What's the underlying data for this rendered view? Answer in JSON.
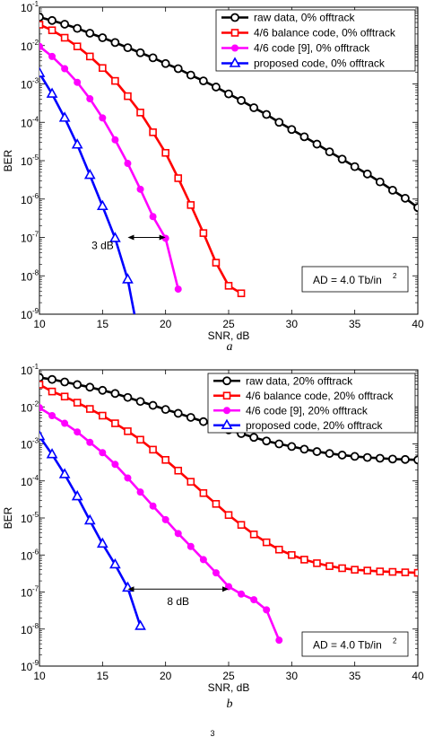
{
  "figure_labels": {
    "a": "a",
    "b": "b",
    "footer_mark": "3"
  },
  "chart_data": [
    {
      "type": "line",
      "panel": "a",
      "xlabel": "SNR, dB",
      "ylabel": "BER",
      "x_scale": "linear",
      "y_scale": "log",
      "xlim": [
        10,
        40
      ],
      "ylim": [
        1e-09,
        0.1
      ],
      "x_ticks": [
        "10",
        "15",
        "20",
        "25",
        "30",
        "35",
        "40"
      ],
      "y_ticks": [
        {
          "base": "10",
          "exp": "-9"
        },
        {
          "base": "10",
          "exp": "-8"
        },
        {
          "base": "10",
          "exp": "-7"
        },
        {
          "base": "10",
          "exp": "-6"
        },
        {
          "base": "10",
          "exp": "-5"
        },
        {
          "base": "10",
          "exp": "-4"
        },
        {
          "base": "10",
          "exp": "-3"
        },
        {
          "base": "10",
          "exp": "-2"
        },
        {
          "base": "10",
          "exp": "-1"
        }
      ],
      "grid": false,
      "legend_position": "top-right",
      "annotation": {
        "text_main": "AD = 4.0 Tb/in",
        "text_sup": "2",
        "position": "bottom-right"
      },
      "arrow": {
        "label": "3 dB",
        "x_from": 17,
        "x_to": 20,
        "y": 1e-07
      },
      "series": [
        {
          "name": "raw data, 0% offtrack",
          "color": "#000000",
          "marker": "circle",
          "x": [
            10,
            11,
            12,
            13,
            14,
            15,
            16,
            17,
            18,
            19,
            20,
            21,
            22,
            23,
            24,
            25,
            26,
            27,
            28,
            29,
            30,
            31,
            32,
            33,
            34,
            35,
            36,
            37,
            38,
            39,
            40
          ],
          "y": [
            0.055,
            0.045,
            0.036,
            0.028,
            0.021,
            0.016,
            0.012,
            0.0088,
            0.0065,
            0.0048,
            0.0034,
            0.0025,
            0.0017,
            0.0012,
            0.00083,
            0.00055,
            0.00037,
            0.00024,
            0.00016,
            0.0001,
            6.5e-05,
            4.2e-05,
            2.7e-05,
            1.7e-05,
            1.1e-05,
            7e-06,
            4.5e-06,
            2.8e-06,
            1.7e-06,
            1.05e-06,
            6e-07
          ]
        },
        {
          "name": "4/6 balance code, 0% offtrack",
          "color": "#ff0000",
          "marker": "square",
          "x": [
            10,
            11,
            12,
            13,
            14,
            15,
            16,
            17,
            18,
            19,
            20,
            21,
            22,
            23,
            24,
            25,
            26
          ],
          "y": [
            0.035,
            0.025,
            0.016,
            0.0095,
            0.0052,
            0.0026,
            0.0012,
            0.00048,
            0.00018,
            5.5e-05,
            1.6e-05,
            3.5e-06,
            7e-07,
            1.3e-07,
            2.2e-08,
            5.5e-09,
            3.5e-09
          ]
        },
        {
          "name": "4/6 code [9], 0% offtrack",
          "color": "#ff00ff",
          "marker": "circle-filled",
          "x": [
            10,
            11,
            12,
            13,
            14,
            15,
            16,
            17,
            18,
            19,
            20,
            21
          ],
          "y": [
            0.0095,
            0.0052,
            0.0025,
            0.0011,
            0.00041,
            0.00013,
            3.5e-05,
            8.5e-06,
            1.8e-06,
            3.5e-07,
            9.5e-08,
            4.5e-09
          ]
        },
        {
          "name": "proposed code, 0% offtrack",
          "color": "#0000ff",
          "marker": "triangle",
          "x": [
            10,
            11,
            12,
            13,
            14,
            15,
            16,
            17,
            18
          ],
          "y": [
            0.0019,
            0.00055,
            0.00013,
            2.6e-05,
            4.2e-06,
            6.5e-07,
            9.5e-08,
            8e-09,
            1.6e-10
          ]
        }
      ]
    },
    {
      "type": "line",
      "panel": "b",
      "xlabel": "SNR, dB",
      "ylabel": "BER",
      "x_scale": "linear",
      "y_scale": "log",
      "xlim": [
        10,
        40
      ],
      "ylim": [
        1e-09,
        0.1
      ],
      "x_ticks": [
        "10",
        "15",
        "20",
        "25",
        "30",
        "35",
        "40"
      ],
      "y_ticks": [
        {
          "base": "10",
          "exp": "-9"
        },
        {
          "base": "10",
          "exp": "-8"
        },
        {
          "base": "10",
          "exp": "-7"
        },
        {
          "base": "10",
          "exp": "-6"
        },
        {
          "base": "10",
          "exp": "-5"
        },
        {
          "base": "10",
          "exp": "-4"
        },
        {
          "base": "10",
          "exp": "-3"
        },
        {
          "base": "10",
          "exp": "-2"
        },
        {
          "base": "10",
          "exp": "-1"
        }
      ],
      "grid": false,
      "legend_position": "top-right",
      "annotation": {
        "text_main": "AD = 4.0 Tb/in",
        "text_sup": "2",
        "position": "bottom-right"
      },
      "arrow": {
        "label": "8 dB",
        "x_from": 17,
        "x_to": 25,
        "y": 1.2e-07
      },
      "series": [
        {
          "name": "raw data, 20% offtrack",
          "color": "#000000",
          "marker": "circle",
          "x": [
            10,
            11,
            12,
            13,
            14,
            15,
            16,
            17,
            18,
            19,
            20,
            21,
            22,
            23,
            24,
            25,
            26,
            27,
            28,
            29,
            30,
            31,
            32,
            33,
            34,
            35,
            36,
            37,
            38,
            39,
            40
          ],
          "y": [
            0.062,
            0.055,
            0.047,
            0.04,
            0.034,
            0.028,
            0.023,
            0.018,
            0.014,
            0.011,
            0.0085,
            0.0067,
            0.0052,
            0.004,
            0.0031,
            0.0024,
            0.0019,
            0.0015,
            0.0012,
            0.001,
            0.00085,
            0.00072,
            0.00062,
            0.00055,
            0.0005,
            0.00046,
            0.00043,
            0.00041,
            0.00039,
            0.00038,
            0.00037
          ]
        },
        {
          "name": "4/6 balance code, 20% offtrack",
          "color": "#ff0000",
          "marker": "square",
          "x": [
            10,
            11,
            12,
            13,
            14,
            15,
            16,
            17,
            18,
            19,
            20,
            21,
            22,
            23,
            24,
            25,
            26,
            27,
            28,
            29,
            30,
            31,
            32,
            33,
            34,
            35,
            36,
            37,
            38,
            39,
            40
          ],
          "y": [
            0.04,
            0.026,
            0.019,
            0.013,
            0.0088,
            0.0058,
            0.0036,
            0.0022,
            0.0013,
            0.0007,
            0.00037,
            0.00019,
            9.5e-05,
            4.7e-05,
            2.4e-05,
            1.2e-05,
            6.5e-06,
            3.6e-06,
            2.2e-06,
            1.4e-06,
            1e-06,
            7.5e-07,
            6e-07,
            5e-07,
            4.4e-07,
            4e-07,
            3.8e-07,
            3.6e-07,
            3.5e-07,
            3.4e-07,
            3.3e-07
          ]
        },
        {
          "name": "4/6 code [9], 20% offtrack",
          "color": "#ff00ff",
          "marker": "circle-filled",
          "x": [
            10,
            11,
            12,
            13,
            14,
            15,
            16,
            17,
            18,
            19,
            20,
            21,
            22,
            23,
            24,
            25,
            26,
            27,
            28,
            29
          ],
          "y": [
            0.0095,
            0.0058,
            0.0036,
            0.0021,
            0.0011,
            0.00058,
            0.00028,
            0.00012,
            5e-05,
            2.1e-05,
            9e-06,
            3.8e-06,
            1.7e-06,
            7.5e-07,
            3.3e-07,
            1.4e-07,
            8.8e-08,
            6.2e-08,
            3.3e-08,
            5e-09
          ]
        },
        {
          "name": "proposed code, 20% offtrack",
          "color": "#0000ff",
          "marker": "triangle",
          "x": [
            10,
            11,
            12,
            13,
            14,
            15,
            16,
            17,
            18
          ],
          "y": [
            0.0016,
            0.00052,
            0.00015,
            3.8e-05,
            8.5e-06,
            2e-06,
            5.5e-07,
            1.3e-07,
            1.2e-08
          ]
        }
      ]
    }
  ]
}
